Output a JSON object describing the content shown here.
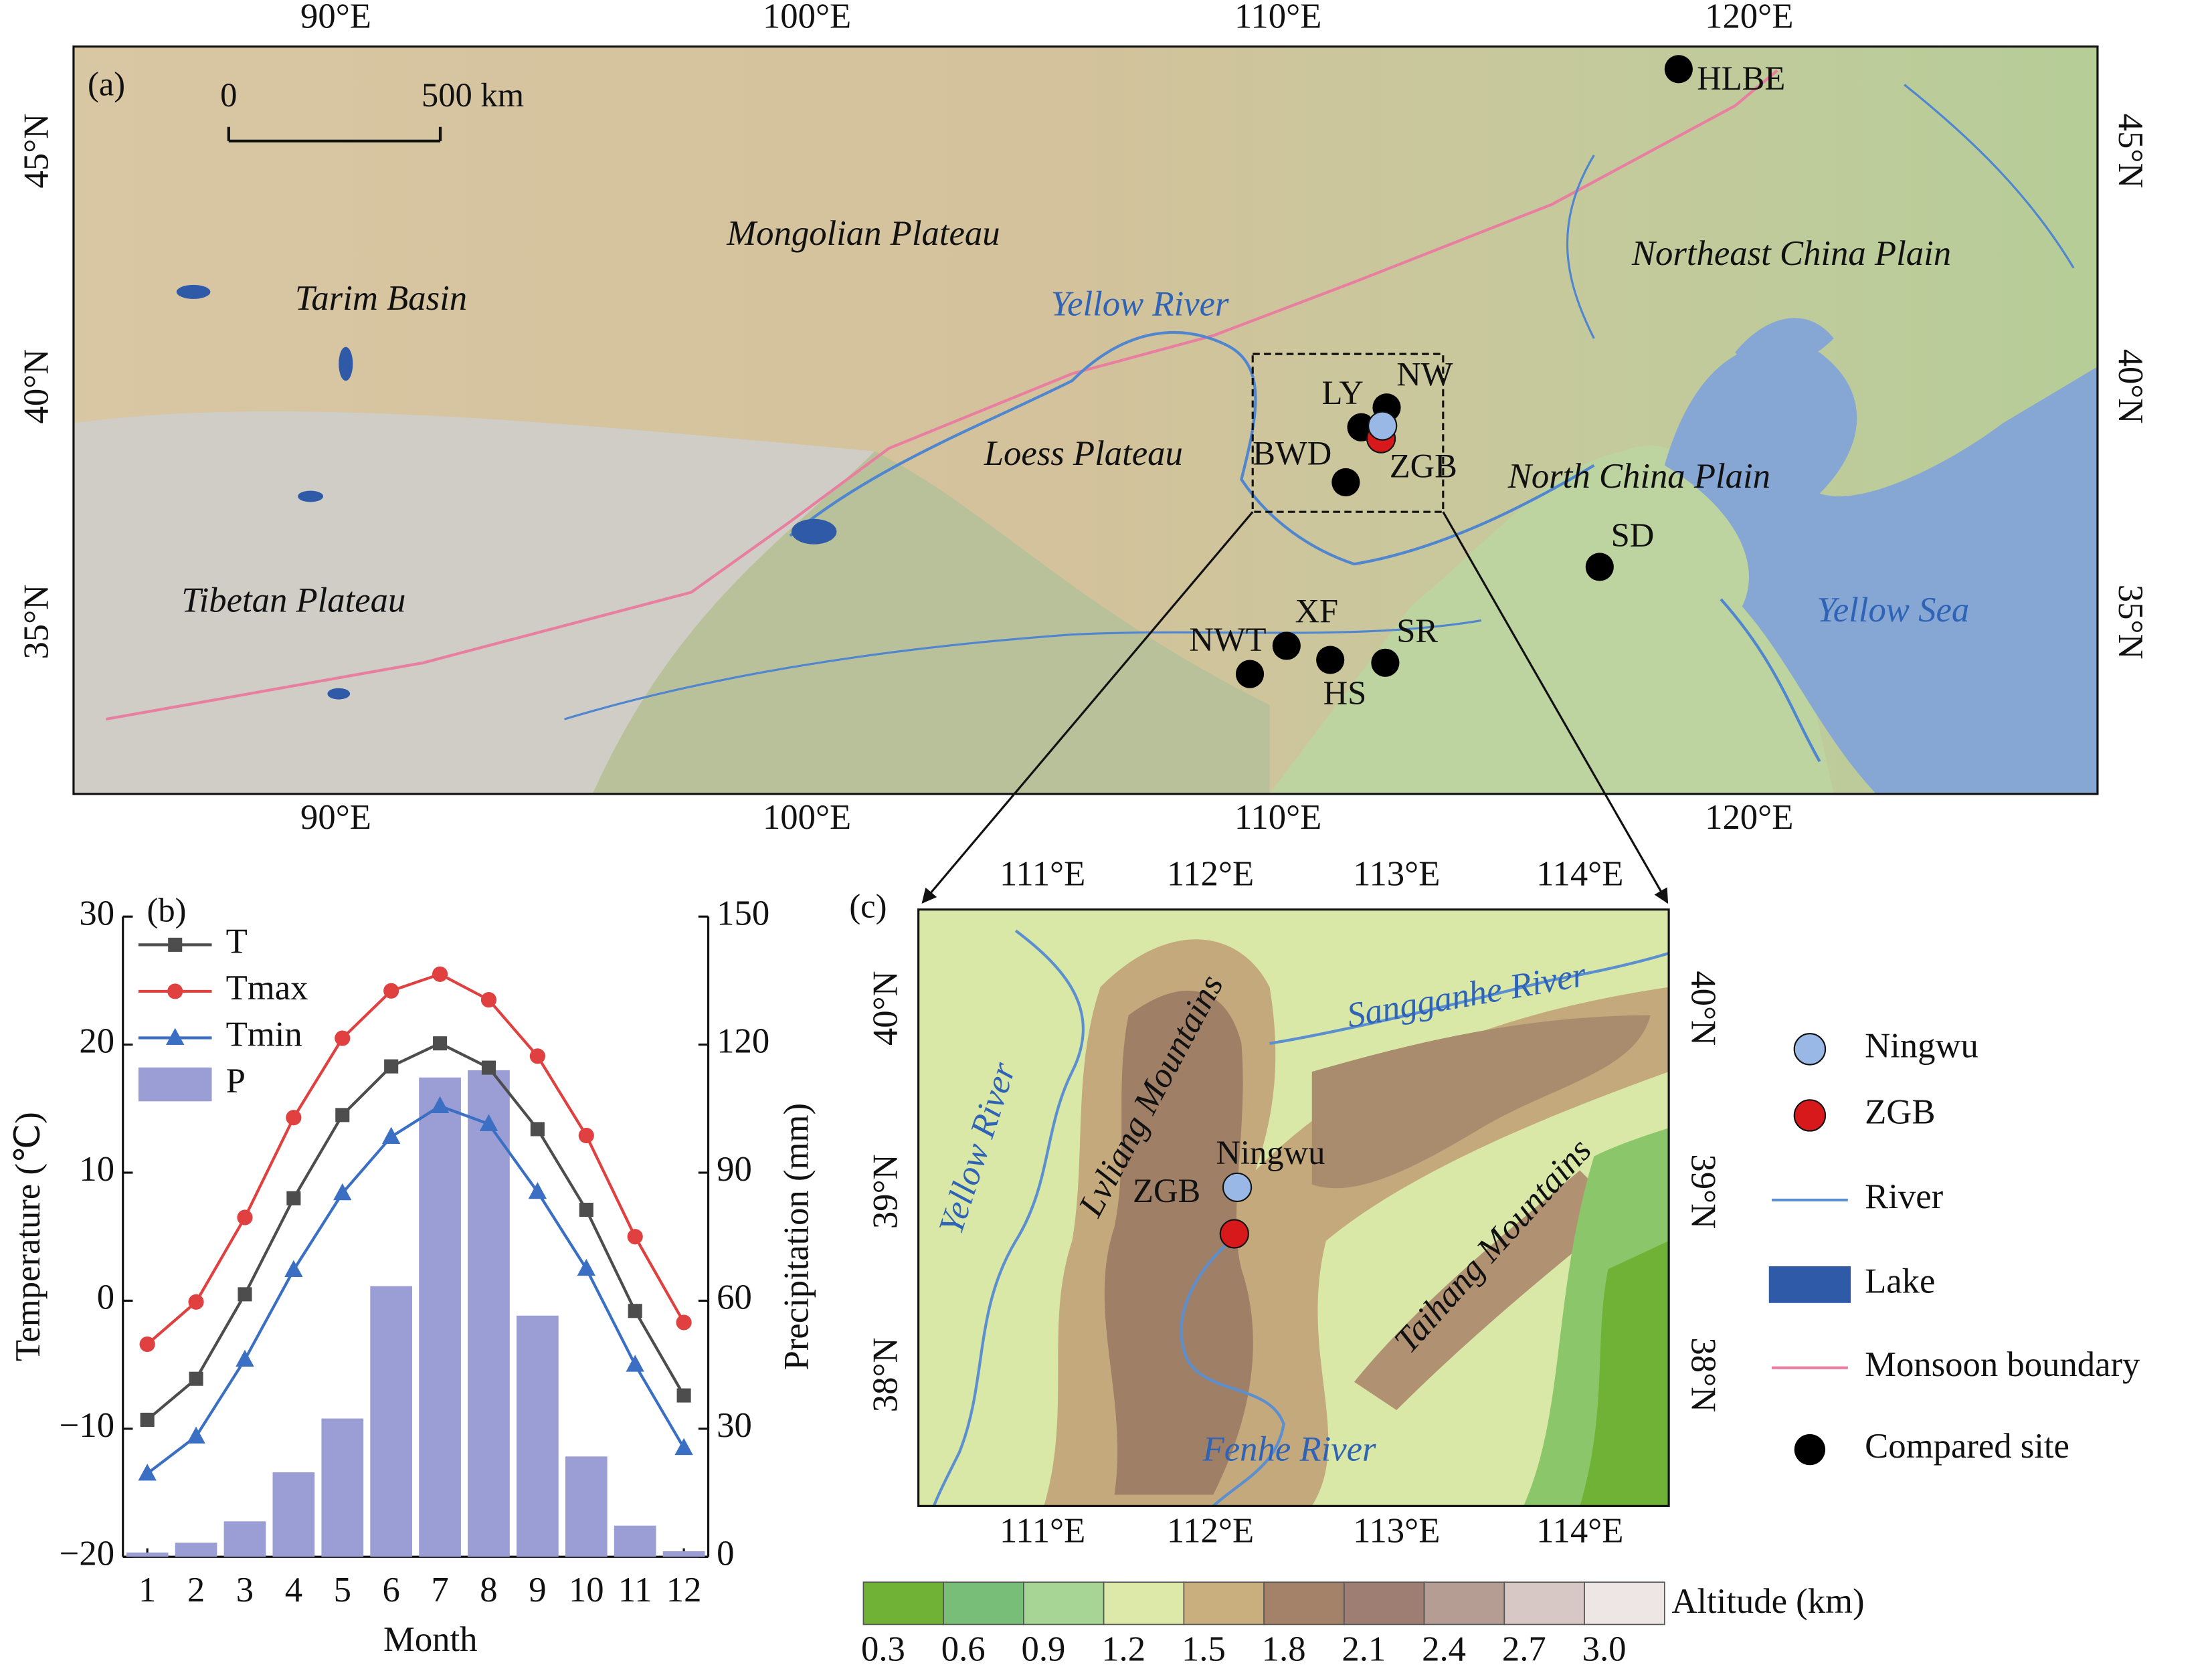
{
  "panel_a": {
    "label": "(a)",
    "scale_bar": {
      "start": "0",
      "end": "500 km"
    },
    "x_labels": [
      "90°E",
      "100°E",
      "110°E",
      "120°E"
    ],
    "y_labels": [
      "45°N",
      "40°N",
      "35°N"
    ],
    "regions": [
      "Mongolian Plateau",
      "Tarim Basin",
      "Northeast China Plain",
      "Loess Plateau",
      "North China Plain",
      "Tibetan Plateau"
    ],
    "water_labels": [
      "Yellow River",
      "Yellow Sea"
    ],
    "sites": [
      "HLBE",
      "LY",
      "NW",
      "BWD",
      "ZGB",
      "SD",
      "XF",
      "NWT",
      "HS",
      "SR"
    ]
  },
  "chart_data": {
    "type": "combo",
    "label": "(b)",
    "xlabel": "Month",
    "ylabel": "Temperature (℃)",
    "y2label": "Precipitation (mm)",
    "categories": [
      "1",
      "2",
      "3",
      "4",
      "5",
      "6",
      "7",
      "8",
      "9",
      "10",
      "11",
      "12"
    ],
    "ylim": [
      -20,
      30
    ],
    "yticks": [
      {
        "value": -20,
        "label": "−20"
      },
      {
        "value": -10,
        "label": "−10"
      },
      0,
      10,
      20,
      30
    ],
    "y2lim": [
      0,
      150
    ],
    "y2ticks": [
      0,
      30,
      60,
      90,
      120,
      150
    ],
    "series": [
      {
        "name": "P",
        "type": "bar",
        "axis": "y2",
        "color": "#9a9ed4",
        "values": [
          1,
          3.3,
          8.3,
          19.8,
          32.4,
          63.4,
          112.3,
          114,
          56.5,
          23.5,
          7.3,
          1.3
        ]
      },
      {
        "name": "T",
        "type": "line",
        "marker": "square",
        "color": "#4d4d4d",
        "values": [
          -9.3,
          -6.1,
          0.5,
          8,
          14.5,
          18.3,
          20.1,
          18.2,
          13.4,
          7.1,
          -0.8,
          -7.4
        ]
      },
      {
        "name": "Tmax",
        "type": "line",
        "marker": "circle",
        "color": "#e0403f",
        "values": [
          -3.4,
          -0.1,
          6.5,
          14.3,
          20.5,
          24.2,
          25.5,
          23.5,
          19.1,
          12.9,
          5,
          -1.7
        ]
      },
      {
        "name": "Tmin",
        "type": "line",
        "marker": "triangle",
        "color": "#3a6fc4",
        "values": [
          -13.5,
          -10.6,
          -4.6,
          2.4,
          8.4,
          12.8,
          15.2,
          13.8,
          8.5,
          2.5,
          -5,
          -11.5
        ]
      }
    ]
  },
  "panel_c": {
    "label": "(c)",
    "x_labels": [
      "111°E",
      "112°E",
      "113°E",
      "114°E"
    ],
    "y_labels": [
      "40°N",
      "39°N",
      "38°N"
    ],
    "mountain_labels": [
      "Lvliang Mountains",
      "Taihang Mountains"
    ],
    "river_labels": [
      "Yellow River",
      "Sangganhe River",
      "Fenhe River"
    ],
    "site_labels": [
      "Ningwu",
      "ZGB"
    ],
    "colorbar": {
      "title": "Altitude (km)",
      "labels": [
        "0.3",
        "0.6",
        "0.9",
        "1.2",
        "1.5",
        "1.8",
        "2.1",
        "2.4",
        "2.7",
        "3.0"
      ],
      "colors": [
        "#6fb236",
        "#78bd78",
        "#a6d596",
        "#dce9a8",
        "#c9ae7e",
        "#a4826a",
        "#9e7e72",
        "#b59d94",
        "#d7c8c5",
        "#ede6e5"
      ]
    }
  },
  "legend": [
    "Ningwu",
    "ZGB",
    "River",
    "Lake",
    "Monsoon boundary",
    "Compared site"
  ]
}
